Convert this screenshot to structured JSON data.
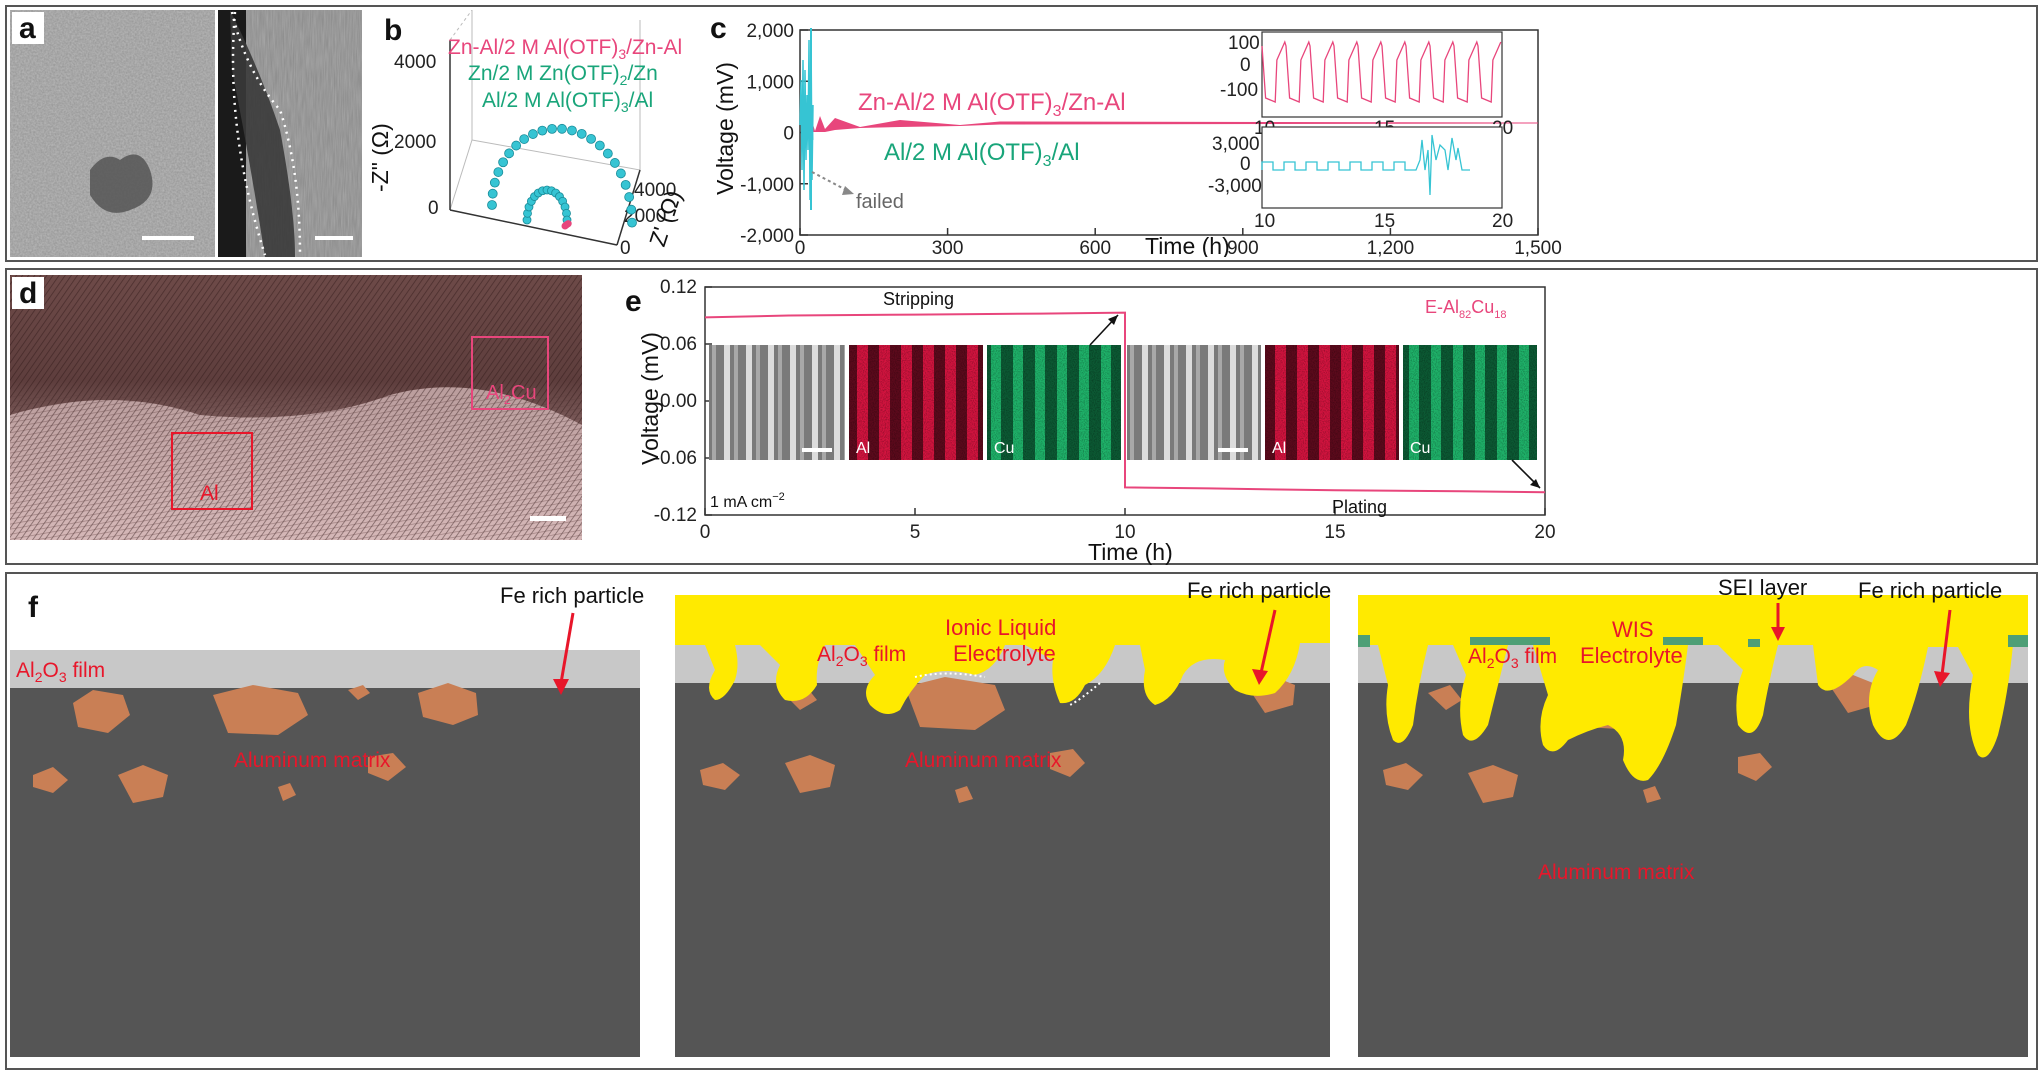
{
  "figure": {
    "panel_letters": [
      "a",
      "b",
      "c",
      "d",
      "e",
      "f"
    ]
  },
  "colors": {
    "pink": "#e8467c",
    "cyan": "#36c4d3",
    "green": "#19a57a",
    "red": "#e8162a",
    "yellow": "#ffea00",
    "matrix": "#555555",
    "oxide": "#c8c8c8",
    "particle": "#c97f55",
    "sei": "#4e9f76"
  },
  "panel_b": {
    "legend": [
      {
        "pre": "Zn-Al/2 M Al(OTF)",
        "sub": "3",
        "post": "/Zn-Al",
        "color": "#e8467c"
      },
      {
        "pre": "Zn/2 M Zn(OTF)",
        "sub": "2",
        "post": "/Zn",
        "color": "#19a57a"
      },
      {
        "pre": "Al/2 M Al(OTF)",
        "sub": "3",
        "post": "/Al",
        "color": "#19a57a"
      }
    ],
    "z_axis_ticks": [
      "4000",
      "2000",
      "0"
    ],
    "depth_ticks": [
      "4000",
      "2000",
      "0"
    ],
    "z_label": "-Z\" (Ω)",
    "depth_label": "Z' (Ω)"
  },
  "panel_c": {
    "ylabel": "Voltage (mV)",
    "xlabel": "Time (h)",
    "y_ticks": [
      "2,000",
      "1,000",
      "0",
      "-1,000",
      "-2,000"
    ],
    "x_ticks": [
      "0",
      "300",
      "600",
      "900",
      "1,200",
      "1,500"
    ],
    "label_zn": {
      "pre": "Zn-Al/2 M Al(OTF)",
      "sub": "3",
      "post": "/Zn-Al"
    },
    "label_al": {
      "pre": "Al/2 M Al(OTF)",
      "sub": "3",
      "post": "/Al"
    },
    "failed": "failed",
    "inset1": {
      "y_ticks": [
        "100",
        "0",
        "-100"
      ],
      "x_ticks": [
        "10",
        "15",
        "20"
      ]
    },
    "inset2": {
      "y_ticks": [
        "3,000",
        "0",
        "-3,000"
      ],
      "x_ticks": [
        "10",
        "15",
        "20"
      ]
    }
  },
  "panel_d": {
    "region_al": "Al",
    "region_al2cu": {
      "pre": "Al",
      "sub": "2",
      "post": "Cu"
    }
  },
  "panel_e": {
    "ylabel": "Voltage (mV)",
    "xlabel": "Time (h)",
    "y_ticks": [
      "0.12",
      "0.06",
      "0.00",
      "-0.06",
      "-0.12"
    ],
    "x_ticks": [
      "0",
      "5",
      "10",
      "15",
      "20"
    ],
    "stripping": "Stripping",
    "plating": "Plating",
    "current": {
      "pre": "1 mA cm",
      "sup": "−2"
    },
    "sample": {
      "pre": "E-Al",
      "sub1": "82",
      "mid": "Cu",
      "sub2": "18"
    },
    "map_al": "Al",
    "map_cu": "Cu"
  },
  "panel_f": {
    "oxide_label": {
      "pre": "Al",
      "sub1": "2",
      "mid": "O",
      "sub2": "3",
      "post": " film"
    },
    "matrix_label": "Aluminum matrix",
    "fe_particle": "Fe rich particle",
    "ionic_liquid": [
      "Ionic Liquid",
      "Electrolyte"
    ],
    "wis": [
      "WIS",
      "Electrolyte"
    ],
    "sei": "SEI layer"
  },
  "chart_data": [
    {
      "type": "line",
      "title": "",
      "xlabel": "Time (h)",
      "ylabel": "Voltage (mV)",
      "xlim": [
        0,
        1500
      ],
      "ylim": [
        -2000,
        2000
      ],
      "series": [
        {
          "name": "Zn-Al/2 M Al(OTF)3/Zn-Al",
          "x": [
            0,
            20,
            100,
            400,
            800,
            1200,
            1500
          ],
          "y_amplitude": [
            150,
            120,
            60,
            40,
            30,
            30,
            30
          ]
        },
        {
          "name": "Al/2 M Al(OTF)3/Al",
          "x": [
            0,
            5,
            10,
            15,
            18
          ],
          "y_amplitude": [
            600,
            800,
            700,
            1200,
            2000
          ]
        }
      ]
    },
    {
      "type": "line",
      "title": "",
      "xlabel": "Time (h)",
      "ylabel": "Voltage (mV)",
      "xlim": [
        0,
        20
      ],
      "ylim": [
        -0.12,
        0.12
      ],
      "series": [
        {
          "name": "E-Al82Cu18",
          "x": [
            0,
            2,
            5,
            8,
            10,
            10,
            12,
            15,
            18,
            20
          ],
          "y": [
            0.088,
            0.09,
            0.091,
            0.092,
            0.093,
            -0.091,
            -0.092,
            -0.094,
            -0.095,
            -0.096
          ]
        }
      ]
    }
  ]
}
